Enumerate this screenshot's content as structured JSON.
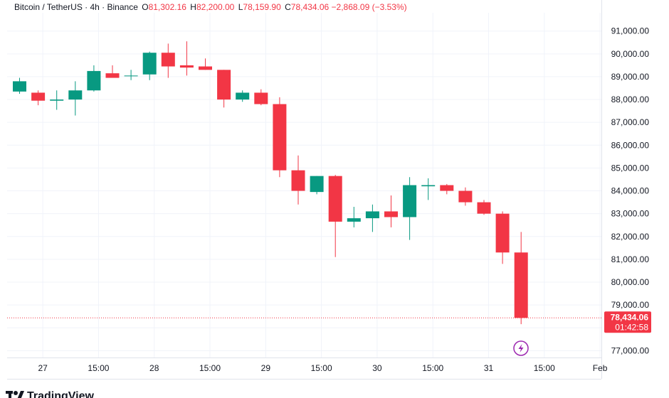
{
  "legend": {
    "symbol": "Bitcoin / TetherUS · 4h · Binance",
    "open_label": "O",
    "open": "81,302.16",
    "high_label": "H",
    "high": "82,200.00",
    "low_label": "L",
    "low": "78,159.90",
    "close_label": "C",
    "close": "78,434.06",
    "change": "−2,868.09 (−3.53%)"
  },
  "last_price_badge": {
    "price": "78,434.06",
    "countdown": "01:42:58"
  },
  "brand": {
    "name": "TradingView"
  },
  "colors": {
    "up": "#089981",
    "down": "#f23645",
    "grid": "#f0f3fa",
    "text": "#131722",
    "dotted_line": "#f23645"
  },
  "chart_data": {
    "type": "candlestick",
    "title": "Bitcoin / TetherUS · 4h · Binance",
    "ylim": [
      76700,
      91800
    ],
    "y_ticks": [
      77000,
      78000,
      79000,
      80000,
      81000,
      82000,
      83000,
      84000,
      85000,
      86000,
      87000,
      88000,
      89000,
      90000,
      91000
    ],
    "y_tick_labels": [
      "77,000.00",
      "78,000.00",
      "79,000.00",
      "80,000.00",
      "81,000.00",
      "82,000.00",
      "83,000.00",
      "84,000.00",
      "85,000.00",
      "86,000.00",
      "87,000.00",
      "88,000.00",
      "89,000.00",
      "90,000.00",
      "91,000.00"
    ],
    "x_ticks": [
      {
        "label": "27",
        "index": 1.25
      },
      {
        "label": "15:00",
        "index": 4.25
      },
      {
        "label": "28",
        "index": 7.25
      },
      {
        "label": "15:00",
        "index": 10.25
      },
      {
        "label": "29",
        "index": 13.25
      },
      {
        "label": "15:00",
        "index": 16.25
      },
      {
        "label": "30",
        "index": 19.25
      },
      {
        "label": "15:00",
        "index": 22.25
      },
      {
        "label": "31",
        "index": 25.25
      },
      {
        "label": "15:00",
        "index": 28.25
      },
      {
        "label": "Feb",
        "index": 31.25
      }
    ],
    "last_price": 78434.06,
    "candles": [
      {
        "o": 88350,
        "h": 88950,
        "l": 88250,
        "c": 88800
      },
      {
        "o": 88300,
        "h": 88400,
        "l": 87750,
        "c": 87950
      },
      {
        "o": 87950,
        "h": 88400,
        "l": 87550,
        "c": 88000
      },
      {
        "o": 88000,
        "h": 88800,
        "l": 87300,
        "c": 88400
      },
      {
        "o": 88400,
        "h": 89500,
        "l": 88350,
        "c": 89250
      },
      {
        "o": 89150,
        "h": 89500,
        "l": 88950,
        "c": 88950
      },
      {
        "o": 89050,
        "h": 89300,
        "l": 88850,
        "c": 89050
      },
      {
        "o": 89100,
        "h": 90100,
        "l": 88850,
        "c": 90050
      },
      {
        "o": 90050,
        "h": 90450,
        "l": 88950,
        "c": 89450
      },
      {
        "o": 89500,
        "h": 90550,
        "l": 89050,
        "c": 89400
      },
      {
        "o": 89450,
        "h": 89800,
        "l": 89300,
        "c": 89300
      },
      {
        "o": 89300,
        "h": 89300,
        "l": 87650,
        "c": 88000
      },
      {
        "o": 88000,
        "h": 88400,
        "l": 87900,
        "c": 88300
      },
      {
        "o": 88300,
        "h": 88450,
        "l": 87750,
        "c": 87800
      },
      {
        "o": 87800,
        "h": 88100,
        "l": 84600,
        "c": 84900
      },
      {
        "o": 84900,
        "h": 85550,
        "l": 83400,
        "c": 84000
      },
      {
        "o": 83950,
        "h": 84650,
        "l": 83850,
        "c": 84650
      },
      {
        "o": 84650,
        "h": 84700,
        "l": 81100,
        "c": 82650
      },
      {
        "o": 82650,
        "h": 83300,
        "l": 82400,
        "c": 82800
      },
      {
        "o": 82800,
        "h": 83400,
        "l": 82200,
        "c": 83100
      },
      {
        "o": 83100,
        "h": 83800,
        "l": 82400,
        "c": 82850
      },
      {
        "o": 82850,
        "h": 84600,
        "l": 81850,
        "c": 84250
      },
      {
        "o": 84200,
        "h": 84550,
        "l": 83600,
        "c": 84250
      },
      {
        "o": 84250,
        "h": 84300,
        "l": 83850,
        "c": 84000
      },
      {
        "o": 84000,
        "h": 84150,
        "l": 83350,
        "c": 83500
      },
      {
        "o": 83500,
        "h": 83600,
        "l": 82950,
        "c": 83000
      },
      {
        "o": 83000,
        "h": 83100,
        "l": 80800,
        "c": 81300
      },
      {
        "o": 81300,
        "h": 82200,
        "l": 78160,
        "c": 78434
      }
    ]
  }
}
